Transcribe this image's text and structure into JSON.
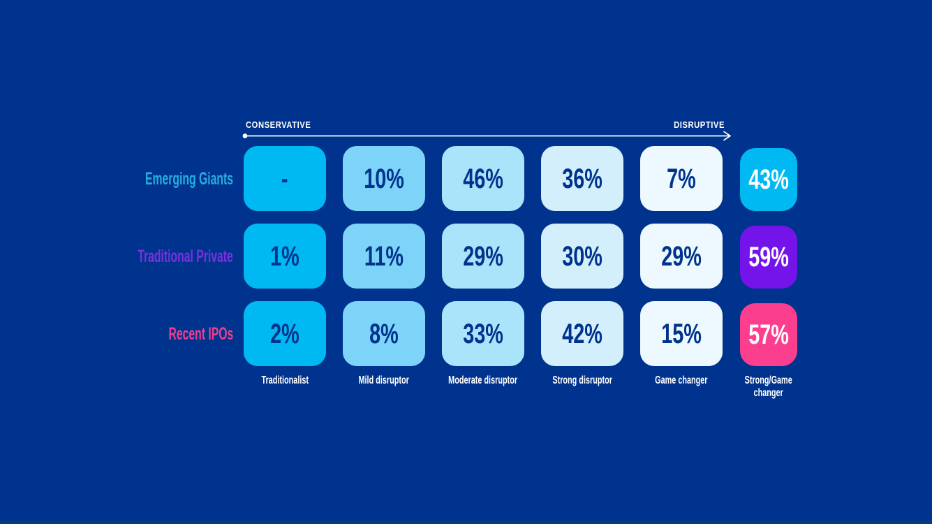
{
  "page": {
    "background": "#00338D",
    "bottom_strip_color": "#10465C"
  },
  "chart_data": {
    "type": "heatmap",
    "title": "",
    "x_axis": {
      "left_label": "CONSERVATIVE",
      "right_label": "DISRUPTIVE",
      "line_color": "#FFFFFF"
    },
    "categories": [
      "Traditionalist",
      "Mild disruptor",
      "Moderate disruptor",
      "Strong disruptor",
      "Game changer",
      "Strong/Game\nchanger"
    ],
    "series": [
      {
        "name": "Emerging Giants",
        "label_color": "#25ACE2",
        "highlight_color": "#00B9F2",
        "values": [
          null,
          10,
          46,
          36,
          7,
          43
        ],
        "display": [
          "-",
          "10%",
          "46%",
          "36%",
          "7%",
          "43%"
        ]
      },
      {
        "name": "Traditional Private",
        "label_color": "#7B2FE2",
        "highlight_color": "#7414EB",
        "values": [
          1,
          11,
          29,
          30,
          29,
          59
        ],
        "display": [
          "1%",
          "11%",
          "29%",
          "30%",
          "29%",
          "59%"
        ]
      },
      {
        "name": "Recent IPOs",
        "label_color": "#EF3E8E",
        "highlight_color": "#FB3E8E",
        "values": [
          2,
          8,
          33,
          42,
          15,
          57
        ],
        "display": [
          "2%",
          "8%",
          "33%",
          "42%",
          "15%",
          "57%"
        ]
      }
    ],
    "scale_colors": [
      "#00B9F2",
      "#7ED3F8",
      "#A9E4FA",
      "#D2EFFB",
      "#EDF9FE"
    ],
    "cell_text_color": "#00338D",
    "highlight_text_color": "#FFFFFF",
    "legend": null,
    "grid": false
  }
}
